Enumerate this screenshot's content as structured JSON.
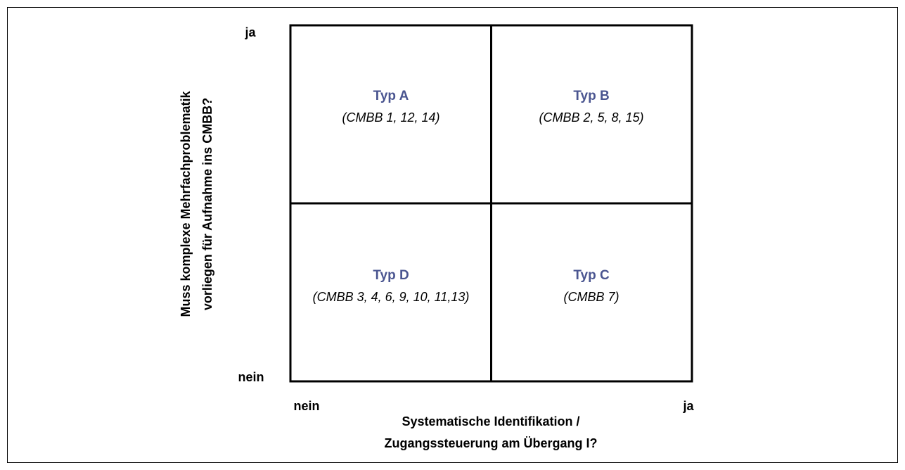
{
  "quadrants": [
    {
      "title": "Typ A",
      "members": "(CMBB 1, 12, 14)"
    },
    {
      "title": "Typ B",
      "members": "(CMBB 2, 5, 8, 15)"
    },
    {
      "title": "Typ D",
      "members": "(CMBB 3, 4, 6, 9, 10, 11,13)"
    },
    {
      "title": "Typ C",
      "members": "(CMBB 7)"
    }
  ],
  "x_axis": {
    "low": "nein",
    "high": "ja",
    "title": [
      "Systematische Identifikation /",
      "Zugangssteuerung am Übergang I?"
    ]
  },
  "y_axis": {
    "low": "nein",
    "high": "ja",
    "title": [
      "Muss komplexe Mehrfachproblematik",
      "vorliegen für Aufnahme ins CMBB?"
    ]
  }
}
